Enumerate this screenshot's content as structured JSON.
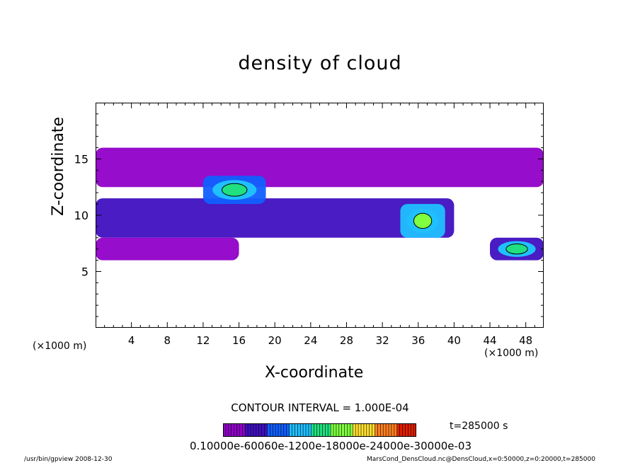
{
  "chart_data": {
    "type": "heatmap",
    "title": "density of cloud",
    "xlabel": "X-coordinate",
    "ylabel": "Z-coordinate",
    "x_scale_label": "(×1000 m)",
    "z_scale_label": "(×1000 m)",
    "xlim": [
      0,
      50
    ],
    "ylim": [
      0,
      20
    ],
    "x_ticks": [
      4,
      8,
      12,
      16,
      20,
      24,
      28,
      32,
      36,
      40,
      44,
      48
    ],
    "y_ticks": [
      5,
      10,
      15
    ],
    "contour_interval": "CONTOUR INTERVAL = 1.000E-04",
    "time": "t=285000 s",
    "colorbar_labels": "0.10000e-60060e-1200e-18000e-24000e-30000e-03",
    "colorbar_min": 0,
    "colorbar_max": 0.0007,
    "colorscale": [
      "#9000c8",
      "#4010c0",
      "#1060ff",
      "#20c0ff",
      "#20e080",
      "#80ff40",
      "#ffe030",
      "#ff8020",
      "#e02000"
    ],
    "regions": [
      {
        "name": "upper-layer",
        "x": [
          0,
          50
        ],
        "z": [
          12.5,
          16
        ],
        "level": 5e-05
      },
      {
        "name": "middle-band",
        "x": [
          0,
          40
        ],
        "z": [
          8,
          11.5
        ],
        "level": 8e-05
      },
      {
        "name": "lower-band",
        "x": [
          0,
          16
        ],
        "z": [
          6,
          8
        ],
        "level": 5e-05
      },
      {
        "name": "cluster-x15",
        "x": [
          12,
          19
        ],
        "z": [
          11,
          13.5
        ],
        "level": 0.0002
      },
      {
        "name": "core-x36",
        "x": [
          34,
          39
        ],
        "z": [
          8,
          11
        ],
        "level": 0.0003
      },
      {
        "name": "edge-x48",
        "x": [
          44,
          50
        ],
        "z": [
          6,
          8
        ],
        "level": 0.00015
      }
    ]
  },
  "footer": {
    "left": "/usr/bin/gpview   2008-12-30",
    "right": "MarsCond_DensCloud.nc@DensCloud,x=0:50000,z=0:20000,t=285000"
  }
}
